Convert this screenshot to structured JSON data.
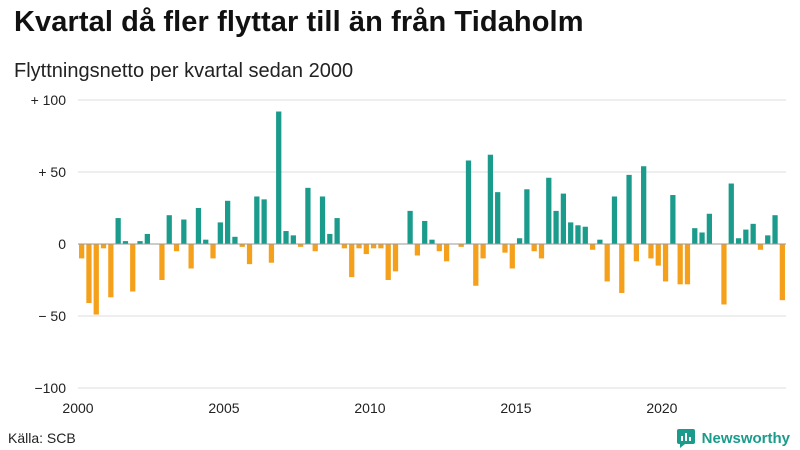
{
  "header": {
    "title": "Kvartal då fler flyttar till än från Tidaholm",
    "subtitle": "Flyttningsnetto per kvartal sedan 2000"
  },
  "footer": {
    "source": "Källa: SCB",
    "brand": "Newsworthy",
    "brand_icon": "bar-chart-logo-icon"
  },
  "colors": {
    "positive": "#1a9b8c",
    "negative": "#f5a01a",
    "grid": "#dddddd",
    "axis": "#999999"
  },
  "chart_data": {
    "type": "bar",
    "title": "Kvartal då fler flyttar till än från Tidaholm",
    "subtitle": "Flyttningsnetto per kvartal sedan 2000",
    "xlabel": "",
    "ylabel": "",
    "ylim": [
      -100,
      100
    ],
    "grid": true,
    "start_quarter": "2000-Q1",
    "y_ticks": [
      {
        "value": 100,
        "label": "+ 100"
      },
      {
        "value": 50,
        "label": "+  50"
      },
      {
        "value": 0,
        "label": "0"
      },
      {
        "value": -50,
        "label": "− 50"
      },
      {
        "value": -100,
        "label": "−100"
      }
    ],
    "x_ticks": [
      "2000",
      "2005",
      "2010",
      "2015",
      "2020"
    ],
    "values": [
      -10,
      -41,
      -49,
      -3,
      -37,
      18,
      2,
      -33,
      2,
      7,
      0,
      -25,
      20,
      -5,
      17,
      -17,
      25,
      3,
      -10,
      15,
      30,
      5,
      -2,
      -14,
      33,
      31,
      -13,
      92,
      9,
      6,
      -2,
      39,
      -5,
      33,
      7,
      18,
      -3,
      -23,
      -3,
      -7,
      -3,
      -3,
      -25,
      -19,
      0,
      23,
      -8,
      16,
      3,
      -5,
      -12,
      0,
      -2,
      58,
      -29,
      -10,
      62,
      36,
      -6,
      -17,
      4,
      38,
      -5,
      -10,
      46,
      23,
      35,
      15,
      13,
      12,
      -4,
      3,
      -26,
      33,
      -34,
      48,
      -12,
      54,
      -10,
      -15,
      -26,
      34,
      -28,
      -28,
      11,
      8,
      21,
      0,
      -42,
      42,
      4,
      10,
      14,
      -4,
      6,
      20,
      -39
    ]
  }
}
